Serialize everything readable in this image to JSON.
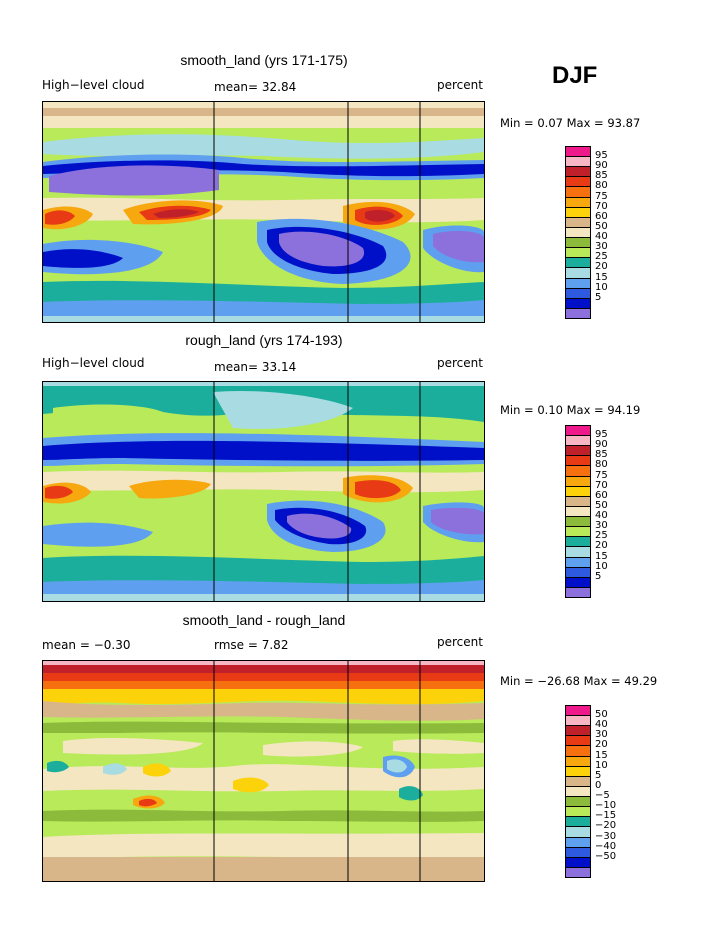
{
  "season": "DJF",
  "panels": [
    {
      "title": "smooth_land (yrs 171-175)",
      "left_label": "High−level cloud",
      "mid_label": "mean=  32.84",
      "right_label": "percent",
      "minmax": "Min =   0.07 Max =  93.87",
      "legend": [
        "95",
        "90",
        "85",
        "80",
        "75",
        "70",
        "60",
        "50",
        "40",
        "30",
        "25",
        "20",
        "15",
        "10",
        "5"
      ]
    },
    {
      "title": "rough_land (yrs 174-193)",
      "left_label": "High−level cloud",
      "mid_label": "mean=  33.14",
      "right_label": "percent",
      "minmax": "Min =   0.10 Max =  94.19",
      "legend": [
        "95",
        "90",
        "85",
        "80",
        "75",
        "70",
        "60",
        "50",
        "40",
        "30",
        "25",
        "20",
        "15",
        "10",
        "5"
      ]
    },
    {
      "title": "smooth_land - rough_land",
      "left_label": "mean =  −0.30",
      "mid_label": "rmse =   7.82",
      "right_label": "percent",
      "minmax": "Min = −26.68 Max =  49.29",
      "legend": [
        "50",
        "40",
        "30",
        "20",
        "15",
        "10",
        "5",
        "0",
        "−5",
        "−10",
        "−15",
        "−20",
        "−30",
        "−40",
        "−50"
      ]
    }
  ],
  "colors": {
    "scale": [
      "#ee1a8c",
      "#f7b6c3",
      "#c0202a",
      "#e83a14",
      "#f7700f",
      "#f7a80f",
      "#fcd20a",
      "#d8b68a",
      "#f3e6c0",
      "#8cbb3b",
      "#b8ea5a",
      "#1cae9c",
      "#a8dce2",
      "#5f9ff0",
      "#2e5ae0",
      "#0010c8",
      "#8c70dc"
    ]
  },
  "chart_data": [
    {
      "type": "heatmap",
      "title": "smooth_land (yrs 171-175)",
      "variable": "High-level cloud",
      "units": "percent",
      "mean": 32.84,
      "min": 0.07,
      "max": 93.87,
      "contour_levels": [
        5,
        10,
        15,
        20,
        25,
        30,
        40,
        50,
        60,
        70,
        75,
        80,
        85,
        90,
        95
      ]
    },
    {
      "type": "heatmap",
      "title": "rough_land (yrs 174-193)",
      "variable": "High-level cloud",
      "units": "percent",
      "mean": 33.14,
      "min": 0.1,
      "max": 94.19,
      "contour_levels": [
        5,
        10,
        15,
        20,
        25,
        30,
        40,
        50,
        60,
        70,
        75,
        80,
        85,
        90,
        95
      ]
    },
    {
      "type": "heatmap",
      "title": "smooth_land - rough_land",
      "units": "percent",
      "mean": -0.3,
      "rmse": 7.82,
      "min": -26.68,
      "max": 49.29,
      "contour_levels": [
        -50,
        -40,
        -30,
        -20,
        -15,
        -10,
        -5,
        0,
        5,
        10,
        15,
        20,
        30,
        40,
        50
      ]
    }
  ]
}
